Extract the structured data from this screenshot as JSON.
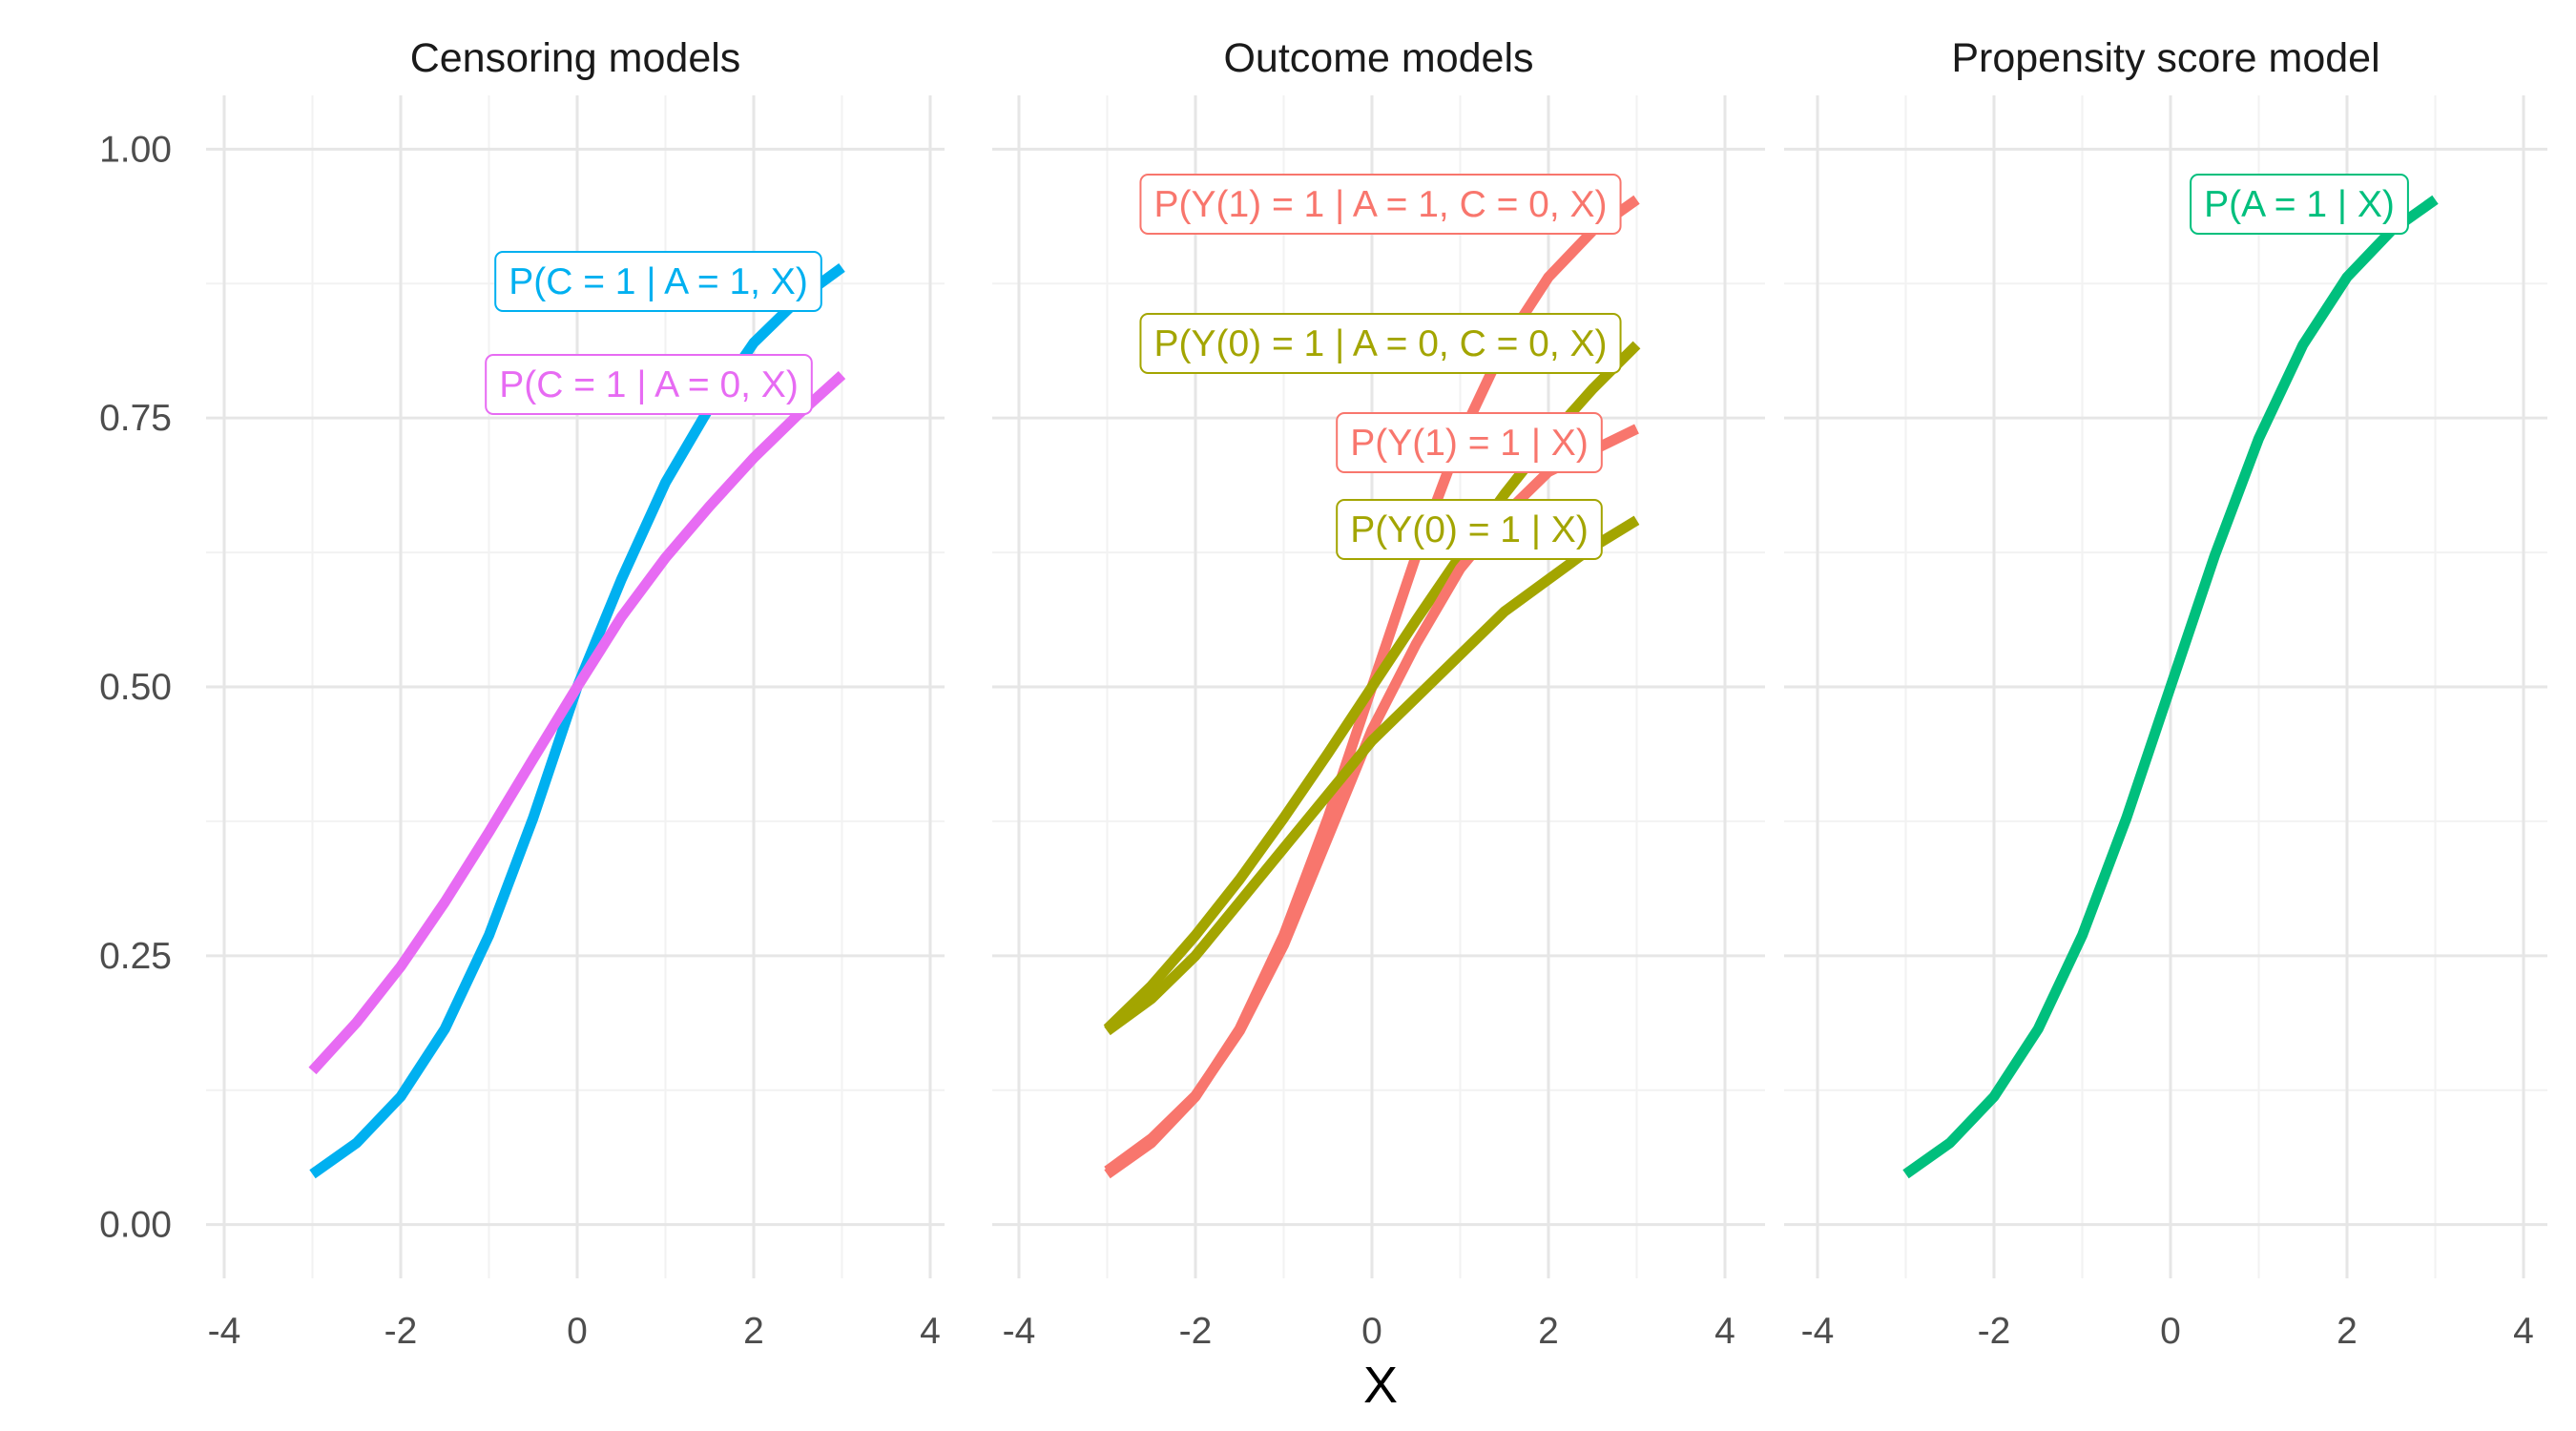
{
  "chart_data": {
    "type": "line",
    "xlabel": "X",
    "ylabel": "",
    "xlim": [
      -4.4,
      4.4
    ],
    "ylim": [
      -0.05,
      1.05
    ],
    "xticks": [
      -4,
      -2,
      0,
      2,
      4
    ],
    "xtick_labels": [
      "-4",
      "-2",
      "0",
      "2",
      "4"
    ],
    "yticks": [
      0,
      0.25,
      0.5,
      0.75,
      1
    ],
    "ytick_labels": [
      "0.00",
      "0.25",
      "0.50",
      "0.75",
      "1.00"
    ],
    "grid": true,
    "legend": "none (direct labels)",
    "panels": [
      {
        "title": "Censoring models",
        "series": [
          {
            "name": "P(C = 1 | A = 1, X)",
            "color": "#00B0F0",
            "x": [
              -3,
              -2.5,
              -2,
              -1.5,
              -1,
              -0.5,
              0,
              0.5,
              1,
              1.5,
              2,
              2.5,
              3
            ],
            "y": [
              0.047,
              0.076,
              0.119,
              0.182,
              0.269,
              0.378,
              0.5,
              0.6,
              0.69,
              0.76,
              0.82,
              0.86,
              0.89
            ]
          },
          {
            "name": "P(C = 1 | A = 0, X)",
            "color": "#E76BF3",
            "x": [
              -3,
              -2.5,
              -2,
              -1.5,
              -1,
              -0.5,
              0,
              0.5,
              1,
              1.5,
              2,
              2.5,
              3
            ],
            "y": [
              0.143,
              0.188,
              0.24,
              0.3,
              0.365,
              0.433,
              0.5,
              0.565,
              0.62,
              0.668,
              0.713,
              0.753,
              0.79
            ]
          }
        ]
      },
      {
        "title": "Outcome models",
        "series": [
          {
            "name": "P(Y(1) = 1 | A = 1, C = 0, X)",
            "color": "#F8766D",
            "x": [
              -3,
              -2.5,
              -2,
              -1.5,
              -1,
              -0.5,
              0,
              0.5,
              1,
              1.5,
              2,
              2.5,
              3
            ],
            "y": [
              0.047,
              0.076,
              0.119,
              0.182,
              0.269,
              0.378,
              0.5,
              0.622,
              0.731,
              0.818,
              0.881,
              0.924,
              0.953
            ]
          },
          {
            "name": "P(Y(0) = 1 | A = 0, C = 0, X)",
            "color": "#A3A500",
            "x": [
              -3,
              -2.5,
              -2,
              -1.5,
              -1,
              -0.5,
              0,
              0.5,
              1,
              1.5,
              2,
              2.5,
              3
            ],
            "y": [
              0.182,
              0.222,
              0.269,
              0.321,
              0.378,
              0.438,
              0.5,
              0.562,
              0.622,
              0.679,
              0.731,
              0.777,
              0.818
            ]
          },
          {
            "name": "P(Y(1) = 1 | X)",
            "color": "#F8766D",
            "x": [
              -3,
              -2.5,
              -2,
              -1.5,
              -1,
              -0.5,
              0,
              0.5,
              1,
              1.5,
              2,
              2.5,
              3
            ],
            "y": [
              0.05,
              0.08,
              0.12,
              0.18,
              0.26,
              0.36,
              0.46,
              0.54,
              0.61,
              0.66,
              0.7,
              0.72,
              0.74
            ]
          },
          {
            "name": "P(Y(0) = 1 | X)",
            "color": "#A3A500",
            "x": [
              -3,
              -2.5,
              -2,
              -1.5,
              -1,
              -0.5,
              0,
              0.5,
              1,
              1.5,
              2,
              2.5,
              3
            ],
            "y": [
              0.18,
              0.21,
              0.25,
              0.3,
              0.35,
              0.4,
              0.45,
              0.49,
              0.53,
              0.57,
              0.6,
              0.63,
              0.655
            ]
          }
        ]
      },
      {
        "title": "Propensity score model",
        "series": [
          {
            "name": "P(A = 1 | X)",
            "color": "#00BF7D",
            "x": [
              -3,
              -2.5,
              -2,
              -1.5,
              -1,
              -0.5,
              0,
              0.5,
              1,
              1.5,
              2,
              2.5,
              3
            ],
            "y": [
              0.047,
              0.076,
              0.119,
              0.182,
              0.269,
              0.378,
              0.5,
              0.622,
              0.731,
              0.818,
              0.881,
              0.924,
              0.953
            ]
          }
        ]
      }
    ]
  }
}
